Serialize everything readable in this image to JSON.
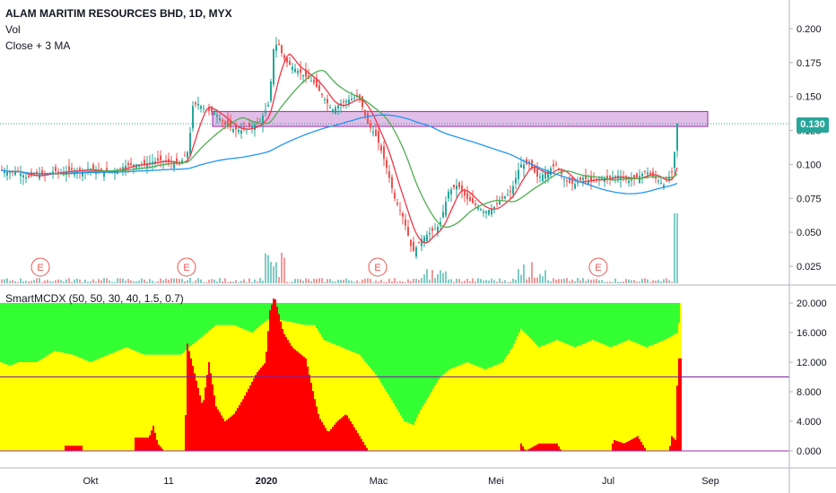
{
  "header": {
    "symbol_line": "ALAM MARITIM RESOURCES BHD, 1D, MYX",
    "vol_label": "Vol",
    "ma_label": "Close + 3 MA"
  },
  "indicator": {
    "title": "SmartMCDX (50, 50, 30, 40, 1.5, 0.7)"
  },
  "last_price": "0.130",
  "colors": {
    "up": "#26a69a",
    "down": "#ef5350",
    "ma_fast": "#f23645",
    "ma_mid": "#4caf50",
    "ma_slow": "#2196f3",
    "zone_fill": "#e1bee7",
    "zone_border": "#9c27b0",
    "mcdx_red": "#ff0000",
    "mcdx_yellow": "#ffff00",
    "mcdx_green": "#33ff33",
    "earnings": "#ef5350"
  },
  "chart_data": [
    {
      "type": "candlestick",
      "title": "ALAM MARITIM RESOURCES BHD, 1D, MYX",
      "x_ticks": [
        "Okt",
        "11",
        "2020",
        "Mac",
        "Mei",
        "Jul",
        "Sep"
      ],
      "y_ticks": [
        "0.200",
        "0.175",
        "0.150",
        "0.125",
        "0.100",
        "0.075",
        "0.050",
        "0.025"
      ],
      "ylim": [
        0.015,
        0.215
      ],
      "last_close": 0.13,
      "resistance_zone": [
        0.128,
        0.139
      ],
      "earnings_markers": [
        "E",
        "E",
        "E",
        "E"
      ],
      "close_path": [
        [
          0,
          0.096
        ],
        [
          10,
          0.094
        ],
        [
          20,
          0.095
        ],
        [
          30,
          0.09
        ],
        [
          40,
          0.093
        ],
        [
          50,
          0.092
        ],
        [
          60,
          0.095
        ],
        [
          70,
          0.094
        ],
        [
          80,
          0.096
        ],
        [
          90,
          0.095
        ],
        [
          100,
          0.097
        ],
        [
          110,
          0.094
        ],
        [
          120,
          0.095
        ],
        [
          130,
          0.096
        ],
        [
          140,
          0.099
        ],
        [
          150,
          0.1
        ],
        [
          160,
          0.1
        ],
        [
          170,
          0.102
        ],
        [
          180,
          0.103
        ],
        [
          190,
          0.101
        ],
        [
          200,
          0.1
        ],
        [
          210,
          0.11
        ],
        [
          215,
          0.143
        ],
        [
          220,
          0.145
        ],
        [
          230,
          0.14
        ],
        [
          240,
          0.138
        ],
        [
          250,
          0.13
        ],
        [
          260,
          0.126
        ],
        [
          270,
          0.125
        ],
        [
          280,
          0.128
        ],
        [
          290,
          0.132
        ],
        [
          300,
          0.145
        ],
        [
          305,
          0.185
        ],
        [
          310,
          0.19
        ],
        [
          315,
          0.18
        ],
        [
          320,
          0.175
        ],
        [
          330,
          0.17
        ],
        [
          340,
          0.165
        ],
        [
          350,
          0.16
        ],
        [
          360,
          0.15
        ],
        [
          370,
          0.14
        ],
        [
          380,
          0.145
        ],
        [
          390,
          0.148
        ],
        [
          400,
          0.15
        ],
        [
          410,
          0.13
        ],
        [
          420,
          0.12
        ],
        [
          430,
          0.1
        ],
        [
          440,
          0.075
        ],
        [
          450,
          0.06
        ],
        [
          460,
          0.035
        ],
        [
          470,
          0.045
        ],
        [
          480,
          0.05
        ],
        [
          490,
          0.055
        ],
        [
          500,
          0.08
        ],
        [
          510,
          0.085
        ],
        [
          520,
          0.075
        ],
        [
          530,
          0.07
        ],
        [
          540,
          0.065
        ],
        [
          550,
          0.068
        ],
        [
          560,
          0.075
        ],
        [
          570,
          0.08
        ],
        [
          580,
          0.1
        ],
        [
          590,
          0.1
        ],
        [
          600,
          0.09
        ],
        [
          610,
          0.095
        ],
        [
          620,
          0.1
        ],
        [
          630,
          0.088
        ],
        [
          640,
          0.085
        ],
        [
          650,
          0.09
        ],
        [
          660,
          0.087
        ],
        [
          670,
          0.09
        ],
        [
          680,
          0.09
        ],
        [
          690,
          0.092
        ],
        [
          700,
          0.088
        ],
        [
          710,
          0.09
        ],
        [
          720,
          0.095
        ],
        [
          730,
          0.09
        ],
        [
          740,
          0.085
        ],
        [
          750,
          0.095
        ],
        [
          755,
          0.13
        ]
      ],
      "series": [
        {
          "name": "Vol",
          "kind": "histogram"
        },
        {
          "name": "Close + 3 MA",
          "kind": "moving averages"
        }
      ]
    },
    {
      "type": "bar",
      "title": "SmartMCDX (50, 50, 30, 40, 1.5, 0.7)",
      "y_ticks": [
        "20.000",
        "16.000",
        "12.000",
        "8.000",
        "4.000",
        "0.000"
      ],
      "ylim": [
        -0.5,
        21
      ],
      "reference_line": 10,
      "series": [
        {
          "name": "red",
          "values_path": [
            [
              0,
              0
            ],
            [
              70,
              0
            ],
            [
              72,
              0.7
            ],
            [
              90,
              0.7
            ],
            [
              92,
              0
            ],
            [
              148,
              0
            ],
            [
              150,
              1.8
            ],
            [
              165,
              1.8
            ],
            [
              170,
              3.4
            ],
            [
              175,
              1
            ],
            [
              182,
              0
            ],
            [
              205,
              0
            ],
            [
              208,
              14.5
            ],
            [
              215,
              11
            ],
            [
              225,
              6
            ],
            [
              232,
              12
            ],
            [
              240,
              6
            ],
            [
              250,
              4
            ],
            [
              260,
              5
            ],
            [
              270,
              7
            ],
            [
              285,
              10.5
            ],
            [
              295,
              12
            ],
            [
              300,
              19
            ],
            [
              305,
              21
            ],
            [
              315,
              16
            ],
            [
              325,
              14
            ],
            [
              340,
              12.5
            ],
            [
              350,
              7
            ],
            [
              355,
              4.5
            ],
            [
              365,
              2.5
            ],
            [
              375,
              4
            ],
            [
              385,
              5
            ],
            [
              395,
              3
            ],
            [
              405,
              1
            ],
            [
              410,
              0
            ],
            [
              578,
              0
            ],
            [
              580,
              1
            ],
            [
              585,
              0
            ],
            [
              600,
              1
            ],
            [
              620,
              1
            ],
            [
              625,
              0
            ],
            [
              680,
              0
            ],
            [
              683,
              1.5
            ],
            [
              695,
              1
            ],
            [
              710,
              2
            ],
            [
              720,
              0
            ],
            [
              745,
              0
            ],
            [
              748,
              2
            ],
            [
              752,
              1.5
            ],
            [
              755,
              12.5
            ],
            [
              758,
              12.5
            ]
          ]
        },
        {
          "name": "yellow",
          "values_path": [
            [
              0,
              12
            ],
            [
              10,
              11.5
            ],
            [
              20,
              12
            ],
            [
              40,
              12
            ],
            [
              60,
              13.5
            ],
            [
              80,
              13
            ],
            [
              100,
              12
            ],
            [
              140,
              14
            ],
            [
              160,
              13
            ],
            [
              180,
              13
            ],
            [
              200,
              13
            ],
            [
              220,
              15
            ],
            [
              240,
              17
            ],
            [
              260,
              17
            ],
            [
              280,
              16
            ],
            [
              300,
              18
            ],
            [
              320,
              17.5
            ],
            [
              340,
              17
            ],
            [
              350,
              17
            ],
            [
              360,
              15
            ],
            [
              380,
              14
            ],
            [
              400,
              13
            ],
            [
              420,
              10
            ],
            [
              430,
              8
            ],
            [
              440,
              6
            ],
            [
              450,
              4
            ],
            [
              460,
              3.5
            ],
            [
              470,
              6
            ],
            [
              480,
              8
            ],
            [
              490,
              10
            ],
            [
              500,
              11
            ],
            [
              520,
              12
            ],
            [
              540,
              11
            ],
            [
              560,
              12
            ],
            [
              570,
              14
            ],
            [
              580,
              16.5
            ],
            [
              600,
              14
            ],
            [
              620,
              15
            ],
            [
              640,
              14
            ],
            [
              660,
              15
            ],
            [
              680,
              14
            ],
            [
              700,
              15
            ],
            [
              720,
              14
            ],
            [
              740,
              15
            ],
            [
              755,
              16
            ],
            [
              758,
              20
            ]
          ]
        },
        {
          "name": "green",
          "fill_to": 20
        }
      ]
    }
  ]
}
